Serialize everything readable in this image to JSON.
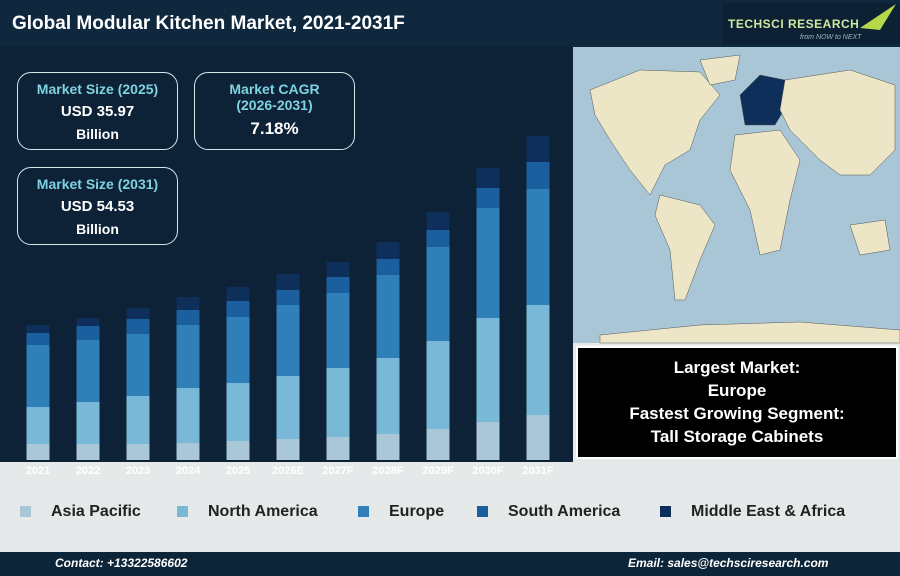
{
  "chart_data": {
    "type": "stacked-bar",
    "title": "Global Modular Kitchen Market, 2021-2031F",
    "categories": [
      "2021",
      "2022",
      "2023",
      "2024",
      "2025",
      "2026E",
      "2027F",
      "2028F",
      "2029F",
      "2030F",
      "2031F"
    ],
    "series": [
      {
        "name": "Asia Pacific",
        "color": "#a9c7d6",
        "values": [
          16,
          16,
          16,
          17,
          19,
          21,
          23,
          26,
          31,
          38,
          45
        ]
      },
      {
        "name": "North America",
        "color": "#7ab8d8",
        "values": [
          37,
          42,
          48,
          55,
          58,
          63,
          69,
          76,
          88,
          104,
          110
        ]
      },
      {
        "name": "Europe",
        "color": "#2f7fb8",
        "values": [
          62,
          62,
          62,
          63,
          66,
          71,
          75,
          83,
          94,
          110,
          116
        ]
      },
      {
        "name": "South America",
        "color": "#1b5f9e",
        "values": [
          12,
          14,
          15,
          15,
          16,
          15,
          16,
          16,
          17,
          20,
          27
        ]
      },
      {
        "name": "Middle East & Africa",
        "color": "#0d2f5a",
        "values": [
          8,
          8,
          11,
          13,
          14,
          16,
          15,
          17,
          18,
          20,
          26
        ]
      }
    ]
  },
  "logo": {
    "name": "TECHSCI RESEARCH",
    "tagline": "from NOW to NEXT"
  },
  "stats": [
    {
      "label": "Market Size (2025)",
      "value": "USD 35.97",
      "unit": "Billion"
    },
    {
      "label": "Market CAGR (2026-2031)",
      "value": "7.18%"
    },
    {
      "label": "Market Size (2031)",
      "value": "USD 54.53",
      "unit": "Billion"
    }
  ],
  "highlights": [
    "Largest Market:",
    "Europe",
    "Fastest Growing Segment:",
    "Tall Storage Cabinets"
  ],
  "footer": {
    "contact": "Contact: +13322586602",
    "email": "Email: sales@techsciresearch.com"
  }
}
